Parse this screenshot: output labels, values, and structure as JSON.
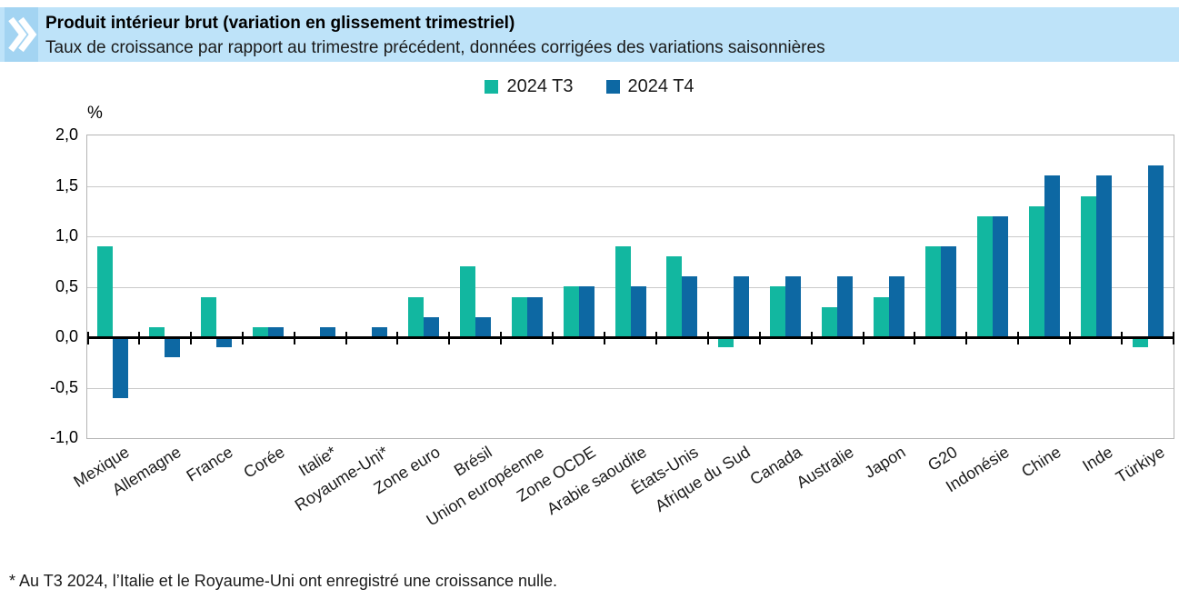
{
  "header": {
    "title": "Produit intérieur brut (variation en glissement trimestriel)",
    "subtitle": "Taux de croissance par rapport au trimestre précédent, données corrigées des variations saisonnières"
  },
  "footnote": "* Au T3 2024, l’Italie et le Royaume-Uni ont enregistré une croissance nulle.",
  "colors": {
    "band_background": "#BEE3F9",
    "logo_square": "#A3D4F2",
    "series_t3": "#12B7A0",
    "series_t4": "#0D68A3",
    "gridline": "#C9C9C9",
    "plot_border": "#B5B5B5",
    "zero_line": "#000000"
  },
  "chart_data": {
    "type": "bar",
    "title": "Produit intérieur brut (variation en glissement trimestriel)",
    "subtitle": "Taux de croissance par rapport au trimestre précédent, données corrigées des variations saisonnières",
    "ylabel": "%",
    "xlabel": "",
    "ylim": [
      -1.0,
      2.0
    ],
    "ytick_values": [
      2.0,
      1.5,
      1.0,
      0.5,
      0.0,
      -0.5,
      -1.0
    ],
    "ytick_labels": [
      "2,0",
      "1,5",
      "1,0",
      "0,5",
      "0,0",
      "-0,5",
      "-1,0"
    ],
    "grid": true,
    "legend_position": "top-center",
    "categories": [
      "Mexique",
      "Allemagne",
      "France",
      "Corée",
      "Italie*",
      "Royaume-Uni*",
      "Zone euro",
      "Brésil",
      "Union européenne",
      "Zone OCDE",
      "Arabie saoudite",
      "États-Unis",
      "Afrique du Sud",
      "Canada",
      "Australie",
      "Japon",
      "G20",
      "Indonésie",
      "Chine",
      "Inde",
      "Türkiye"
    ],
    "series": [
      {
        "name": "2024 T3",
        "color": "#12B7A0",
        "values": [
          0.9,
          0.1,
          0.4,
          0.1,
          0.0,
          0.0,
          0.4,
          0.7,
          0.4,
          0.5,
          0.9,
          0.8,
          -0.1,
          0.5,
          0.3,
          0.4,
          0.9,
          1.2,
          1.3,
          1.4,
          -0.1
        ]
      },
      {
        "name": "2024 T4",
        "color": "#0D68A3",
        "values": [
          -0.6,
          -0.2,
          -0.1,
          0.1,
          0.1,
          0.1,
          0.2,
          0.2,
          0.4,
          0.5,
          0.5,
          0.6,
          0.6,
          0.6,
          0.6,
          0.6,
          0.9,
          1.2,
          1.6,
          1.6,
          1.7
        ]
      }
    ]
  }
}
